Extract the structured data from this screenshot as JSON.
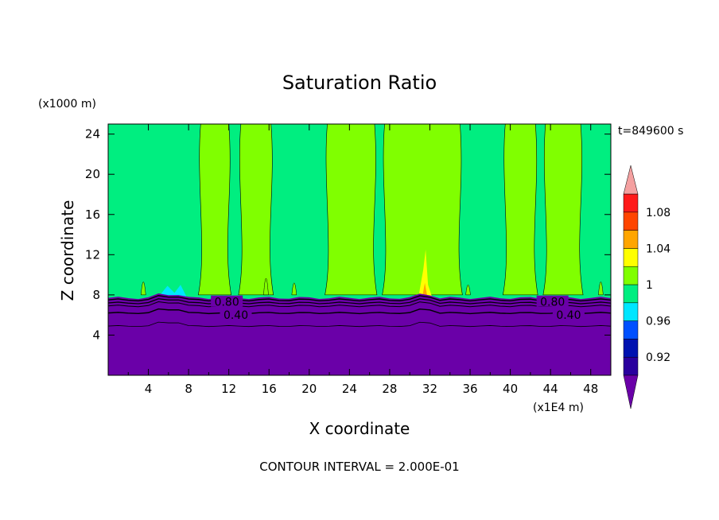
{
  "chart_data": {
    "type": "heatmap",
    "title": "Saturation Ratio",
    "xlabel": "X coordinate",
    "ylabel": "Z coordinate",
    "x_unit": "(x1E4 m)",
    "y_unit": "(x1000 m)",
    "time_label": "t=849600 s",
    "footer": "CONTOUR INTERVAL = 2.000E-01",
    "xlim": [
      0,
      50
    ],
    "ylim": [
      0,
      25
    ],
    "x_ticks": [
      4,
      8,
      12,
      16,
      20,
      24,
      28,
      32,
      36,
      40,
      44,
      48
    ],
    "x_tick_labels": [
      "4",
      "8",
      "12",
      "16",
      "20",
      "24",
      "28",
      "32",
      "36",
      "40",
      "44",
      "48"
    ],
    "y_ticks": [
      4,
      8,
      12,
      16,
      20,
      24
    ],
    "y_tick_labels": [
      "4",
      "8",
      "12",
      "16",
      "20",
      "24"
    ],
    "colorbar": {
      "levels": [
        0.9,
        0.92,
        0.94,
        0.96,
        0.98,
        1.0,
        1.02,
        1.04,
        1.06,
        1.08,
        1.1
      ],
      "colors": [
        "#6a00a8",
        "#2a009e",
        "#0012b0",
        "#0050ff",
        "#00e6ff",
        "#00ee80",
        "#80ff00",
        "#ffff00",
        "#ffa500",
        "#ff4500",
        "#ff1a1a"
      ],
      "under_color": "#6a00a8",
      "over_color": "#f4a0a0",
      "tick_values": [
        0.92,
        0.96,
        1.0,
        1.04,
        1.08
      ],
      "tick_labels": [
        "0.92",
        "0.96",
        "1",
        "1.04",
        "1.08"
      ]
    },
    "contour_labels": [
      {
        "text": "0.80",
        "x": 11.8,
        "y": 7.3
      },
      {
        "text": "0.40",
        "x": 12.7,
        "y": 6.0
      },
      {
        "text": "0.80",
        "x": 44.2,
        "y": 7.3
      },
      {
        "text": "0.40",
        "x": 45.8,
        "y": 6.0
      }
    ],
    "green_bands": [
      {
        "x0": 9.2,
        "x1": 12.0
      },
      {
        "x0": 13.2,
        "x1": 16.2
      },
      {
        "x0": 21.8,
        "x1": 26.5
      },
      {
        "x0": 27.5,
        "x1": 35.0
      },
      {
        "x0": 39.5,
        "x1": 42.5
      },
      {
        "x0": 43.5,
        "x1": 47.0
      }
    ]
  }
}
